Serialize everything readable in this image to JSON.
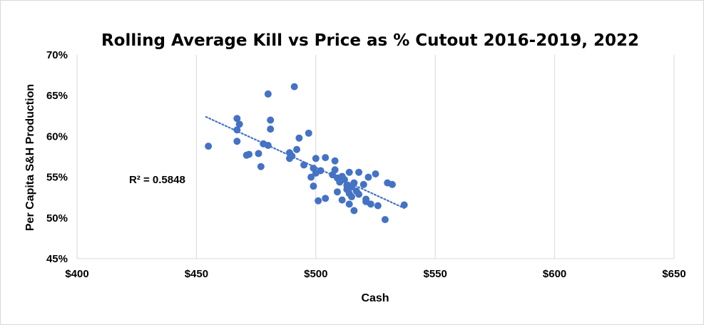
{
  "chart_data": {
    "type": "scatter",
    "title": "Rolling Average Kill vs Price as % Cutout 2016-2019, 2022",
    "xlabel": "Cash",
    "ylabel": "Per Capita S&H Production",
    "xlim": [
      400,
      650
    ],
    "ylim": [
      0.45,
      0.7
    ],
    "x_ticks": [
      400,
      450,
      500,
      550,
      600,
      650
    ],
    "x_tick_labels": [
      "$400",
      "$450",
      "$500",
      "$550",
      "$600",
      "$650"
    ],
    "y_ticks": [
      0.45,
      0.5,
      0.55,
      0.6,
      0.65,
      0.7
    ],
    "y_tick_labels": [
      "45%",
      "50%",
      "55%",
      "60%",
      "65%",
      "70%"
    ],
    "grid": "vertical",
    "marker_color": "#4472C4",
    "trendline": {
      "type": "linear",
      "style": "dotted",
      "x_range": [
        454,
        537
      ],
      "y_start": 0.624,
      "y_end": 0.512
    },
    "annotation": "R² = 0.5848",
    "points": [
      {
        "x": 455,
        "y": 0.588
      },
      {
        "x": 467,
        "y": 0.622
      },
      {
        "x": 468,
        "y": 0.615
      },
      {
        "x": 467,
        "y": 0.608
      },
      {
        "x": 467,
        "y": 0.594
      },
      {
        "x": 471,
        "y": 0.577
      },
      {
        "x": 472,
        "y": 0.578
      },
      {
        "x": 476,
        "y": 0.579
      },
      {
        "x": 477,
        "y": 0.563
      },
      {
        "x": 478,
        "y": 0.591
      },
      {
        "x": 480,
        "y": 0.652
      },
      {
        "x": 480,
        "y": 0.589
      },
      {
        "x": 481,
        "y": 0.62
      },
      {
        "x": 481,
        "y": 0.609
      },
      {
        "x": 489,
        "y": 0.58
      },
      {
        "x": 489,
        "y": 0.573
      },
      {
        "x": 490,
        "y": 0.576
      },
      {
        "x": 491,
        "y": 0.661
      },
      {
        "x": 492,
        "y": 0.584
      },
      {
        "x": 493,
        "y": 0.598
      },
      {
        "x": 495,
        "y": 0.565
      },
      {
        "x": 497,
        "y": 0.604
      },
      {
        "x": 498,
        "y": 0.55
      },
      {
        "x": 499,
        "y": 0.561
      },
      {
        "x": 499,
        "y": 0.539
      },
      {
        "x": 500,
        "y": 0.555
      },
      {
        "x": 500,
        "y": 0.573
      },
      {
        "x": 501,
        "y": 0.521
      },
      {
        "x": 502,
        "y": 0.558
      },
      {
        "x": 504,
        "y": 0.574
      },
      {
        "x": 504,
        "y": 0.524
      },
      {
        "x": 507,
        "y": 0.553
      },
      {
        "x": 508,
        "y": 0.57
      },
      {
        "x": 508,
        "y": 0.559
      },
      {
        "x": 509,
        "y": 0.549
      },
      {
        "x": 509,
        "y": 0.532
      },
      {
        "x": 510,
        "y": 0.544
      },
      {
        "x": 511,
        "y": 0.551
      },
      {
        "x": 511,
        "y": 0.522
      },
      {
        "x": 512,
        "y": 0.547
      },
      {
        "x": 513,
        "y": 0.54
      },
      {
        "x": 513,
        "y": 0.535
      },
      {
        "x": 514,
        "y": 0.556
      },
      {
        "x": 514,
        "y": 0.53
      },
      {
        "x": 514,
        "y": 0.517
      },
      {
        "x": 515,
        "y": 0.538
      },
      {
        "x": 515,
        "y": 0.526
      },
      {
        "x": 516,
        "y": 0.543
      },
      {
        "x": 516,
        "y": 0.509
      },
      {
        "x": 517,
        "y": 0.533
      },
      {
        "x": 518,
        "y": 0.529
      },
      {
        "x": 518,
        "y": 0.556
      },
      {
        "x": 520,
        "y": 0.541
      },
      {
        "x": 521,
        "y": 0.52
      },
      {
        "x": 521,
        "y": 0.523
      },
      {
        "x": 522,
        "y": 0.55
      },
      {
        "x": 523,
        "y": 0.517
      },
      {
        "x": 525,
        "y": 0.554
      },
      {
        "x": 526,
        "y": 0.515
      },
      {
        "x": 529,
        "y": 0.498
      },
      {
        "x": 530,
        "y": 0.543
      },
      {
        "x": 532,
        "y": 0.541
      },
      {
        "x": 537,
        "y": 0.516
      }
    ]
  }
}
